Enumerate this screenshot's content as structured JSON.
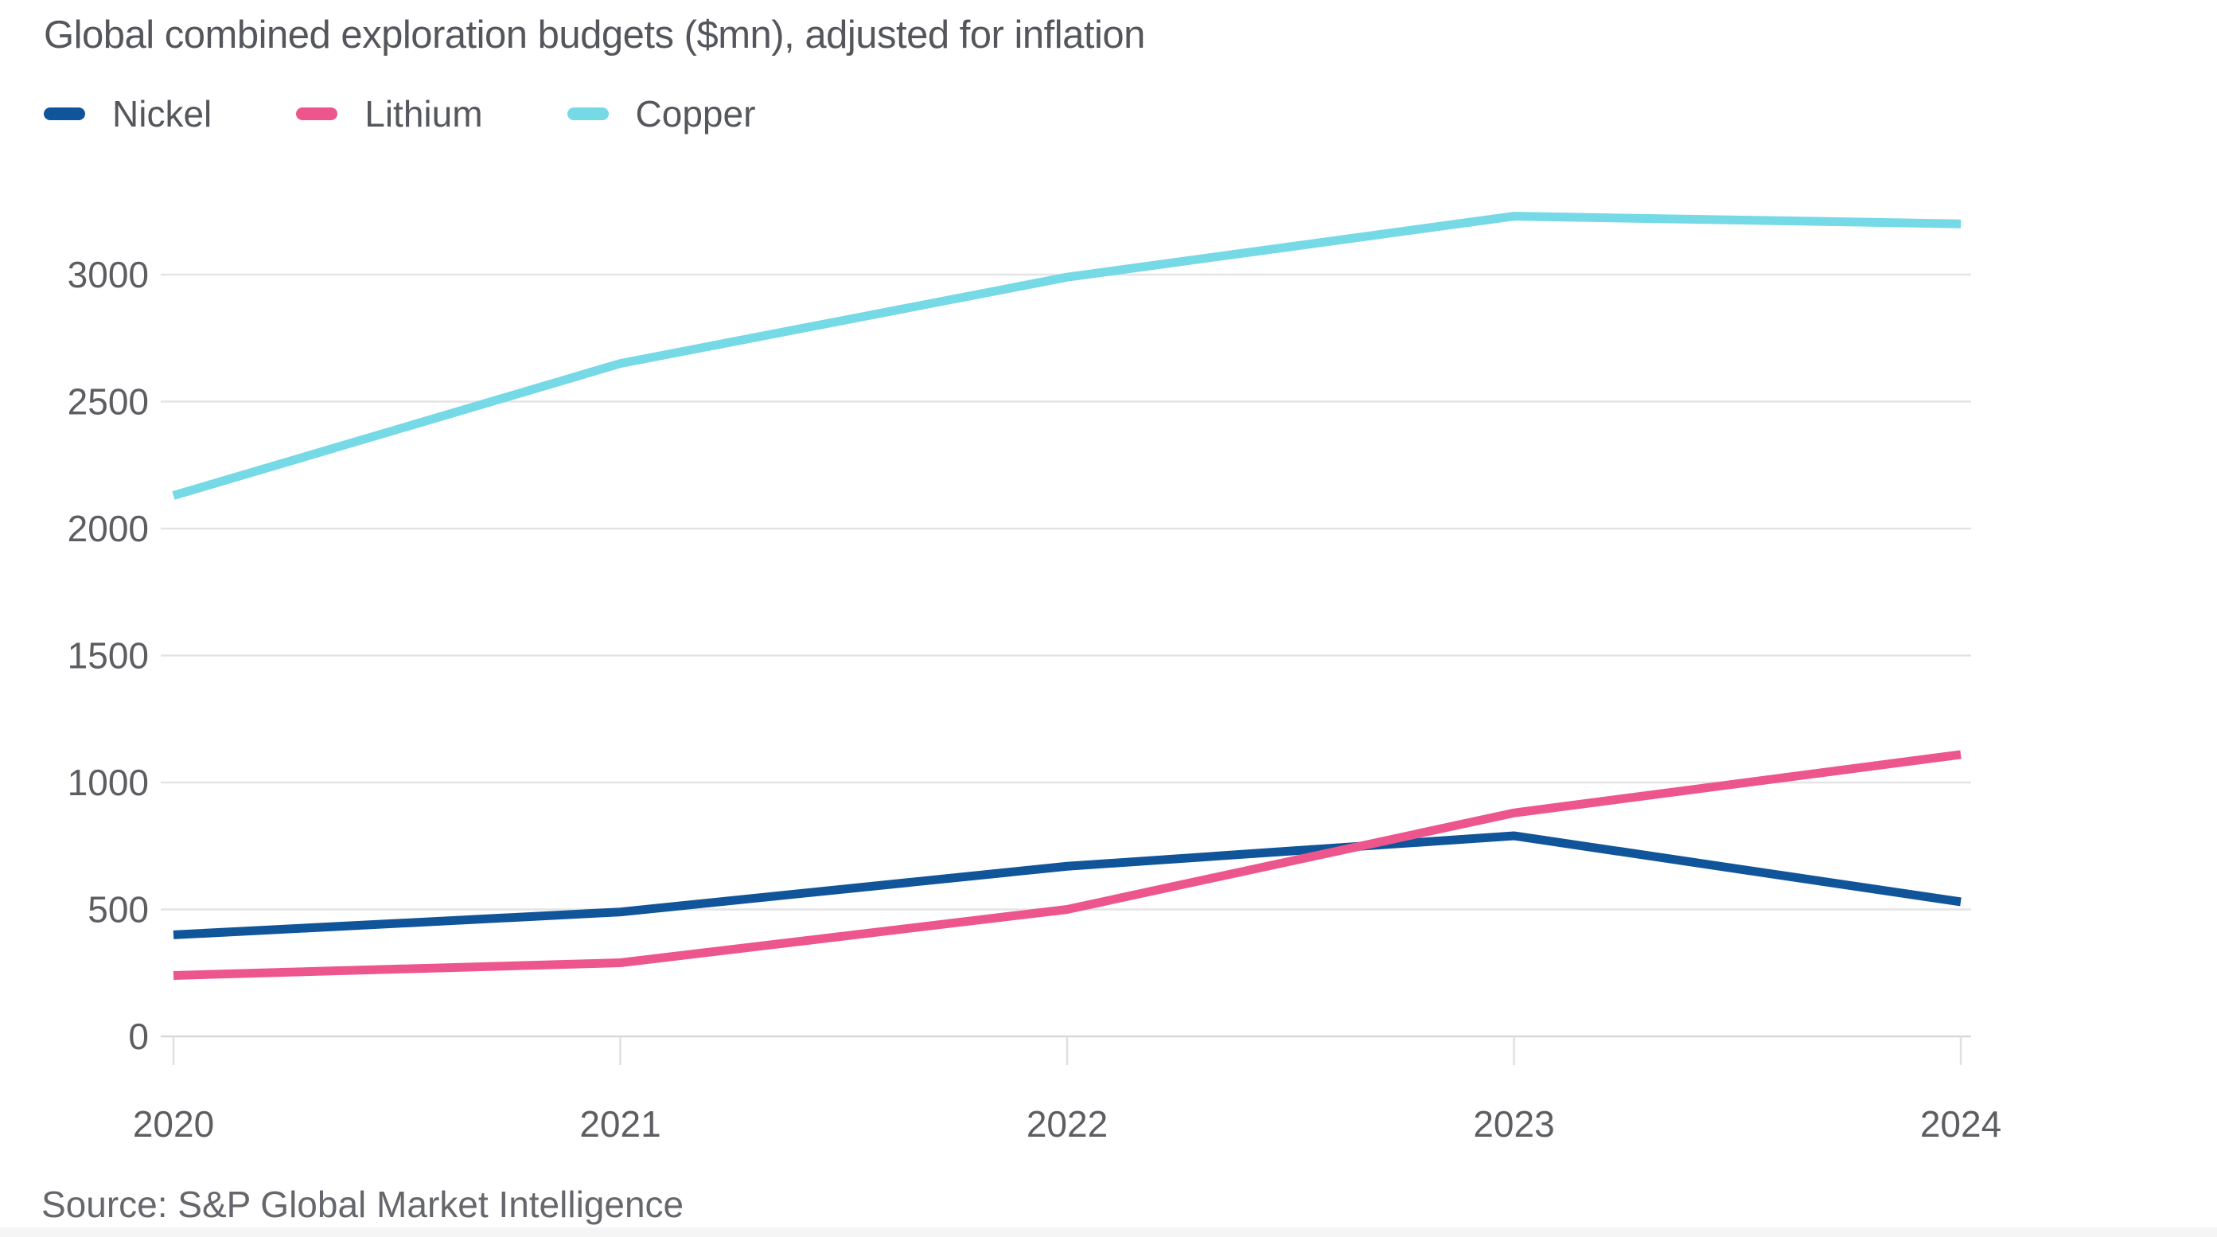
{
  "page": {
    "title": "Global combined exploration budgets ($mn), adjusted for inflation",
    "source": "Source: S&P Global Market Intelligence"
  },
  "colors": {
    "background": "#ffffff",
    "title_text": "#54565b",
    "axis_text": "#5d5e62",
    "source_text": "#66676c",
    "gridline": "#e4e4e4",
    "zero_line": "#d8d8d8",
    "tick_mark": "#e0e0e0"
  },
  "chart_data": {
    "type": "line",
    "title": "Global combined exploration budgets ($mn), adjusted for inflation",
    "xlabel": "",
    "ylabel": "",
    "x": [
      2020,
      2021,
      2022,
      2023,
      2024
    ],
    "series": [
      {
        "name": "Nickel",
        "color": "#10559a",
        "values": [
          400,
          490,
          670,
          790,
          530
        ]
      },
      {
        "name": "Lithium",
        "color": "#ed568c",
        "values": [
          240,
          290,
          500,
          880,
          1110
        ]
      },
      {
        "name": "Copper",
        "color": "#75d9e6",
        "values": [
          2130,
          2650,
          2990,
          3230,
          3200
        ]
      }
    ],
    "yticks": [
      0,
      500,
      1000,
      1500,
      2000,
      2500,
      3000
    ],
    "ylim": [
      0,
      3300
    ],
    "grid": true,
    "legend_position": "top-left"
  }
}
